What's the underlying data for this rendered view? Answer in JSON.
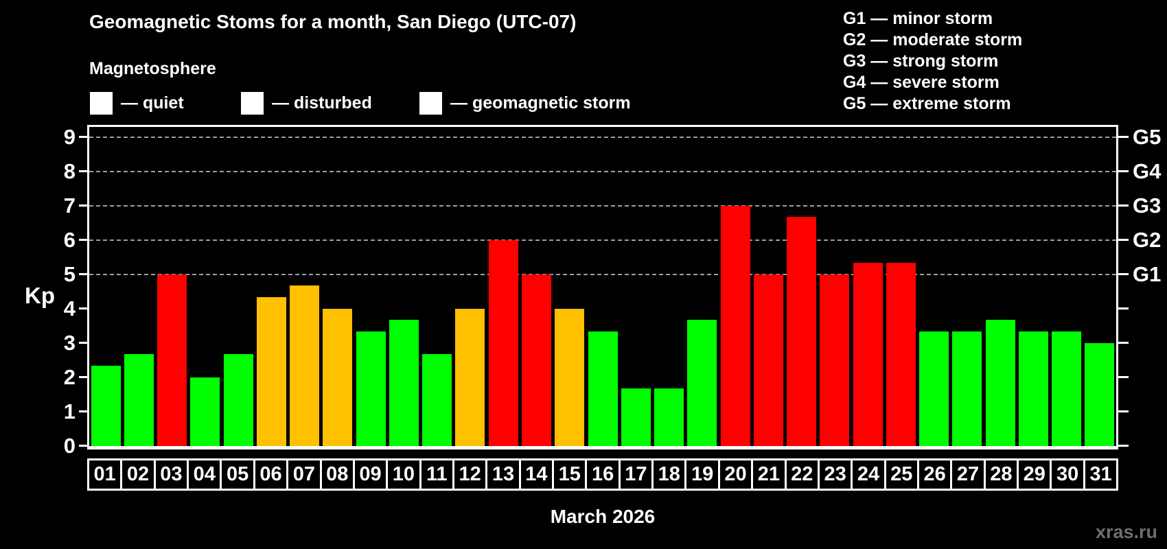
{
  "title": "Geomagnetic Stoms for a month, San Diego (UTC-07)",
  "subtitle": "Magnetosphere",
  "colors": {
    "quiet": "#00ff00",
    "disturbed": "#ffc000",
    "storm": "#ff0000"
  },
  "legend": {
    "items": [
      {
        "label": "— quiet",
        "status": "quiet"
      },
      {
        "label": "— disturbed",
        "status": "disturbed"
      },
      {
        "label": "— geomagnetic storm",
        "status": "storm"
      }
    ]
  },
  "g_legend": {
    "items": [
      {
        "label": "G1 — minor storm"
      },
      {
        "label": "G2 — moderate storm"
      },
      {
        "label": "G3 — strong storm"
      },
      {
        "label": "G4 — severe storm"
      },
      {
        "label": "G5 — extreme storm"
      }
    ]
  },
  "axis": {
    "ylabel": "Kp",
    "yticks": [
      0,
      1,
      2,
      3,
      4,
      5,
      6,
      7,
      8,
      9
    ],
    "right_labels": [
      {
        "text": "G1",
        "kp": 5
      },
      {
        "text": "G2",
        "kp": 6
      },
      {
        "text": "G3",
        "kp": 7
      },
      {
        "text": "G4",
        "kp": 8
      },
      {
        "text": "G5",
        "kp": 9
      }
    ]
  },
  "chart_data": {
    "type": "bar",
    "title": "Geomagnetic Stoms for a month, San Diego (UTC-07)",
    "xlabel": "March 2026",
    "ylabel": "Kp",
    "ylim": [
      0,
      9.4
    ],
    "grid": "horizontal dashed lines at Kp 5,6,7,8,9 (G1–G5); legend top-right",
    "categories": [
      "01",
      "02",
      "03",
      "04",
      "05",
      "06",
      "07",
      "08",
      "09",
      "10",
      "11",
      "12",
      "13",
      "14",
      "15",
      "16",
      "17",
      "18",
      "19",
      "20",
      "21",
      "22",
      "23",
      "24",
      "25",
      "26",
      "27",
      "28",
      "29",
      "30",
      "31"
    ],
    "values": [
      2.33,
      2.67,
      5,
      2,
      2.67,
      4.33,
      4.67,
      4,
      3.33,
      3.67,
      2.67,
      4,
      6,
      5,
      4,
      3.33,
      1.67,
      1.67,
      3.67,
      7,
      5,
      6.67,
      5,
      5.33,
      5.33,
      3.33,
      3.33,
      3.67,
      3.33,
      3.33,
      3
    ],
    "statuses": [
      "quiet",
      "quiet",
      "storm",
      "quiet",
      "quiet",
      "disturbed",
      "disturbed",
      "disturbed",
      "quiet",
      "quiet",
      "quiet",
      "disturbed",
      "storm",
      "storm",
      "disturbed",
      "quiet",
      "quiet",
      "quiet",
      "quiet",
      "storm",
      "storm",
      "storm",
      "storm",
      "storm",
      "storm",
      "quiet",
      "quiet",
      "quiet",
      "quiet",
      "quiet",
      "quiet"
    ]
  },
  "footer": {
    "month_label": "March 2026",
    "watermark": "xras.ru"
  }
}
